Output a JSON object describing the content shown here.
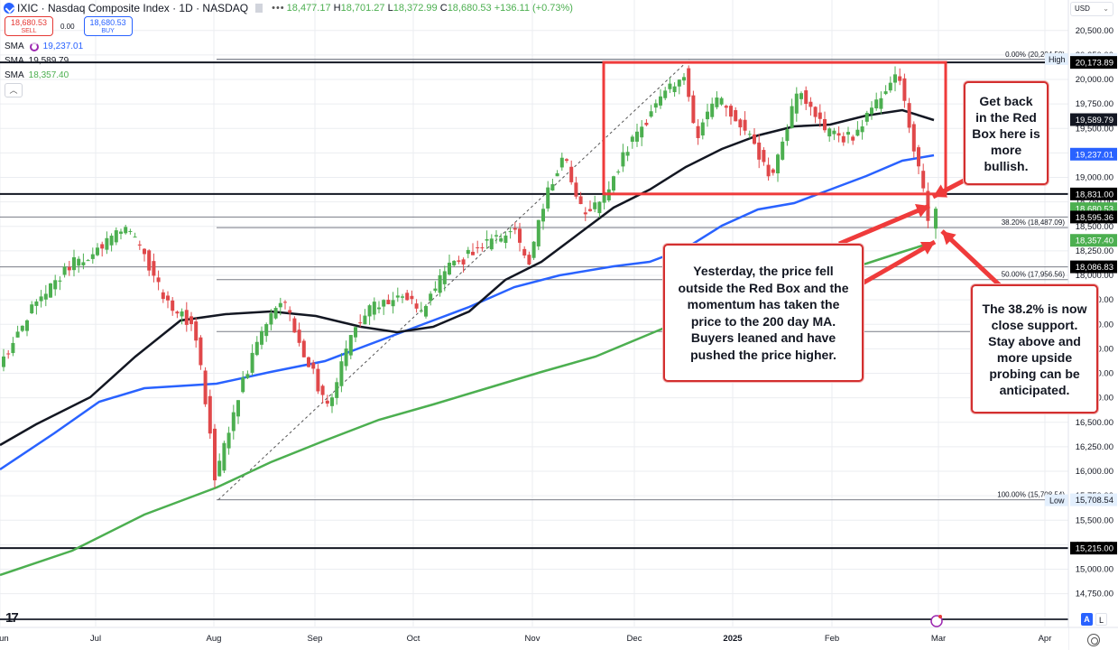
{
  "header": {
    "symbol": "IXIC",
    "title": "IXIC · Nasdaq Composite Index · 1D · NASDAQ",
    "more_icon": "more-horizontal-icon",
    "ohlc": {
      "open_label": "",
      "open": "18,477.17",
      "high_label": "H",
      "high": "18,701.27",
      "low_label": "L",
      "low": "18,372.99",
      "close_label": "C",
      "close": "18,680.53",
      "change": "+136.11 (+0.73%)"
    }
  },
  "trade": {
    "sell_price": "18,680.53",
    "sell_label": "SELL",
    "spread": "0.00",
    "buy_price": "18,680.53",
    "buy_label": "BUY"
  },
  "indicators": [
    {
      "name": "SMA",
      "value": "19,237.01",
      "color": "#2962ff",
      "period_hint": "100-day"
    },
    {
      "name": "SMA",
      "value": "19,589.79",
      "color": "#131722",
      "period_hint": "50-day"
    },
    {
      "name": "SMA",
      "value": "18,357.40",
      "color": "#4caf50",
      "period_hint": "200-day"
    }
  ],
  "collapse_icon": "chevron-up-icon",
  "currency": {
    "label": "USD"
  },
  "scale_buttons": {
    "auto": "A",
    "log": "L"
  },
  "callouts": {
    "top_right": "Get back\nin the Red\nBox here is\nmore\nbullish.",
    "center": "Yesterday, the price fell\noutside the Red Box and the\nmomentum has taken the\nprice to the 200 day MA.\nBuyers leaned and have\npushed the price higher.",
    "bottom_right": "The 38.2% is now\nclose support.\nStay above and\nmore upside\nprobing can be\nanticipated."
  },
  "colors": {
    "up": "#4caf50",
    "down": "#e0484a",
    "sma50": "#131722",
    "sma100": "#2962ff",
    "sma200": "#4caf50",
    "annotation_red": "#ef3b3b",
    "grid": "#e6e8ee"
  },
  "chart_data": {
    "type": "candlestick",
    "title": "IXIC · Nasdaq Composite Index · 1D · NASDAQ",
    "xlabel": "",
    "ylabel": "USD",
    "x_ticks": [
      "Jun",
      "Jul",
      "Aug",
      "Sep",
      "Oct",
      "Nov",
      "Dec",
      "2025",
      "Feb",
      "Mar",
      "Apr"
    ],
    "y_ticks": [
      14750,
      15000,
      15250,
      15500,
      15750,
      16000,
      16250,
      16500,
      16750,
      17000,
      17250,
      17500,
      17750,
      18000,
      18250,
      18500,
      18750,
      19000,
      19250,
      19500,
      19750,
      20000,
      20250,
      20500
    ],
    "ylim": [
      14650,
      20650
    ],
    "last_bar": {
      "open": 18477.17,
      "high": 18701.27,
      "low": 18372.99,
      "close": 18680.53,
      "change": 136.11,
      "change_pct": 0.73
    },
    "horizontal_levels": [
      {
        "label": "20,173.89",
        "value": 20173.89,
        "style": "solid-black"
      },
      {
        "label": "18,831.00",
        "value": 18831.0,
        "style": "solid-black"
      },
      {
        "label": "18,595.36",
        "value": 18595.36,
        "style": "solid-gray"
      },
      {
        "label": "18,086.83",
        "value": 18086.83,
        "style": "solid-gray"
      },
      {
        "label": "15,215.00",
        "value": 15215.0,
        "style": "solid-black"
      }
    ],
    "fibonacci": [
      {
        "level": "0.00%",
        "value": 20204.58,
        "label": "0.00% (20,204.58)"
      },
      {
        "level": "38.20%",
        "value": 18487.09,
        "label": "38.20% (18,487.09)"
      },
      {
        "level": "50.00%",
        "value": 17956.56,
        "label": "50.00% (17,956.56)"
      },
      {
        "level": "61.80%",
        "value": 17426.03,
        "label": ""
      },
      {
        "level": "100.00%",
        "value": 15708.54,
        "label": "100.00% (15,708.54)"
      }
    ],
    "high_marker": {
      "label": "High",
      "value": 20204.58
    },
    "low_marker": {
      "label": "Low",
      "value": 15708.54
    },
    "red_box": {
      "top": 20173.89,
      "bottom": 18831.0,
      "x_start": "late Nov",
      "x_end": "late Feb"
    },
    "series": [
      {
        "name": "SMA 50",
        "color": "#131722",
        "last": 19589.79
      },
      {
        "name": "SMA 100",
        "color": "#2962ff",
        "last": 19237.01
      },
      {
        "name": "SMA 200",
        "color": "#4caf50",
        "last": 18357.4
      },
      {
        "name": "Close",
        "color": "#4caf50",
        "last": 18680.53
      }
    ],
    "price_axis_labels": [
      {
        "text": "20,204.58",
        "value": 20204.58,
        "bg": "#e3effd",
        "fg": "#131722"
      },
      {
        "text": "20,173.89",
        "value": 20173.89,
        "bg": "#000000",
        "fg": "#ffffff"
      },
      {
        "text": "19,589.79",
        "value": 19589.79,
        "bg": "#131722",
        "fg": "#ffffff"
      },
      {
        "text": "19,237.01",
        "value": 19237.01,
        "bg": "#2962ff",
        "fg": "#ffffff"
      },
      {
        "text": "18,831.00",
        "value": 18831.0,
        "bg": "#000000",
        "fg": "#ffffff"
      },
      {
        "text": "18,680.53",
        "value": 18680.53,
        "bg": "#4caf50",
        "fg": "#ffffff"
      },
      {
        "text": "18,595.36",
        "value": 18595.36,
        "bg": "#000000",
        "fg": "#ffffff"
      },
      {
        "text": "18,357.40",
        "value": 18357.4,
        "bg": "#4caf50",
        "fg": "#ffffff"
      },
      {
        "text": "18,086.83",
        "value": 18086.83,
        "bg": "#000000",
        "fg": "#ffffff"
      },
      {
        "text": "15,708.54",
        "value": 15708.54,
        "bg": "#e3effd",
        "fg": "#131722"
      },
      {
        "text": "15,215.00",
        "value": 15215.0,
        "bg": "#000000",
        "fg": "#ffffff"
      }
    ],
    "legend_position": "top-left",
    "grid": true
  }
}
